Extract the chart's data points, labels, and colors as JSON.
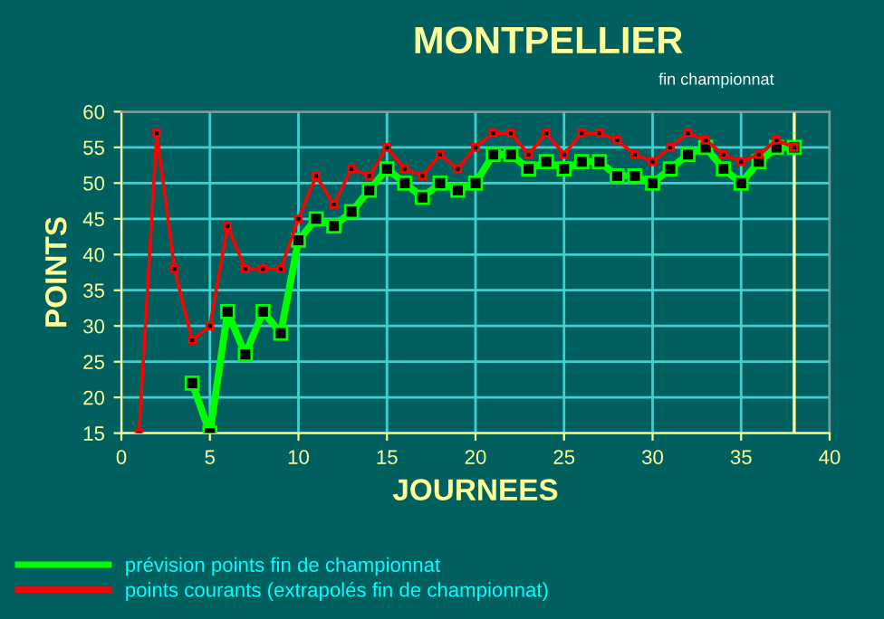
{
  "chart_data": {
    "type": "line",
    "title": "MONTPELLIER",
    "subtitle": "fin championnat",
    "xlabel": "JOURNEES",
    "ylabel": "POINTS",
    "xlim": [
      0,
      40
    ],
    "xticks": [
      0,
      5,
      10,
      15,
      20,
      25,
      30,
      35,
      40
    ],
    "ylim": [
      15,
      60
    ],
    "yticks": [
      15,
      20,
      25,
      30,
      35,
      40,
      45,
      50,
      55,
      60
    ],
    "grid": true,
    "legend": "bottom left",
    "marker": "square",
    "line_style": "solid",
    "ref_lines": [
      {
        "axis": "x",
        "value": 38,
        "label": null,
        "color": "#ffff99"
      }
    ],
    "series": [
      {
        "name": "prévision points fin de championnat",
        "color": "#00ff00",
        "x": [
          4,
          5,
          6,
          7,
          8,
          9,
          10,
          11,
          12,
          13,
          14,
          15,
          16,
          17,
          18,
          19,
          20,
          21,
          22,
          23,
          24,
          25,
          26,
          27,
          28,
          29,
          30,
          31,
          32,
          33,
          34,
          35,
          36,
          37,
          38
        ],
        "values": [
          22,
          15,
          32,
          26,
          32,
          29,
          42,
          45,
          44,
          46,
          49,
          52,
          50,
          48,
          50,
          49,
          50,
          54,
          54,
          52,
          53,
          52,
          53,
          53,
          51,
          51,
          50,
          52,
          54,
          55,
          52,
          50,
          53,
          55,
          55
        ]
      },
      {
        "name": "points courants (extrapolés fin de championnat)",
        "color": "#ff0000",
        "x": [
          1,
          2,
          3,
          4,
          5,
          6,
          7,
          8,
          9,
          10,
          11,
          12,
          13,
          14,
          15,
          16,
          17,
          18,
          19,
          20,
          21,
          22,
          23,
          24,
          25,
          26,
          27,
          28,
          29,
          30,
          31,
          32,
          33,
          34,
          35,
          36,
          37,
          38
        ],
        "values": [
          15,
          57,
          38,
          28,
          30,
          44,
          38,
          38,
          38,
          45,
          51,
          47,
          52,
          51,
          55,
          52,
          51,
          54,
          52,
          55,
          57,
          57,
          54,
          57,
          54,
          57,
          57,
          56,
          54,
          53,
          55,
          57,
          56,
          54,
          53,
          54,
          56,
          55
        ]
      }
    ]
  }
}
